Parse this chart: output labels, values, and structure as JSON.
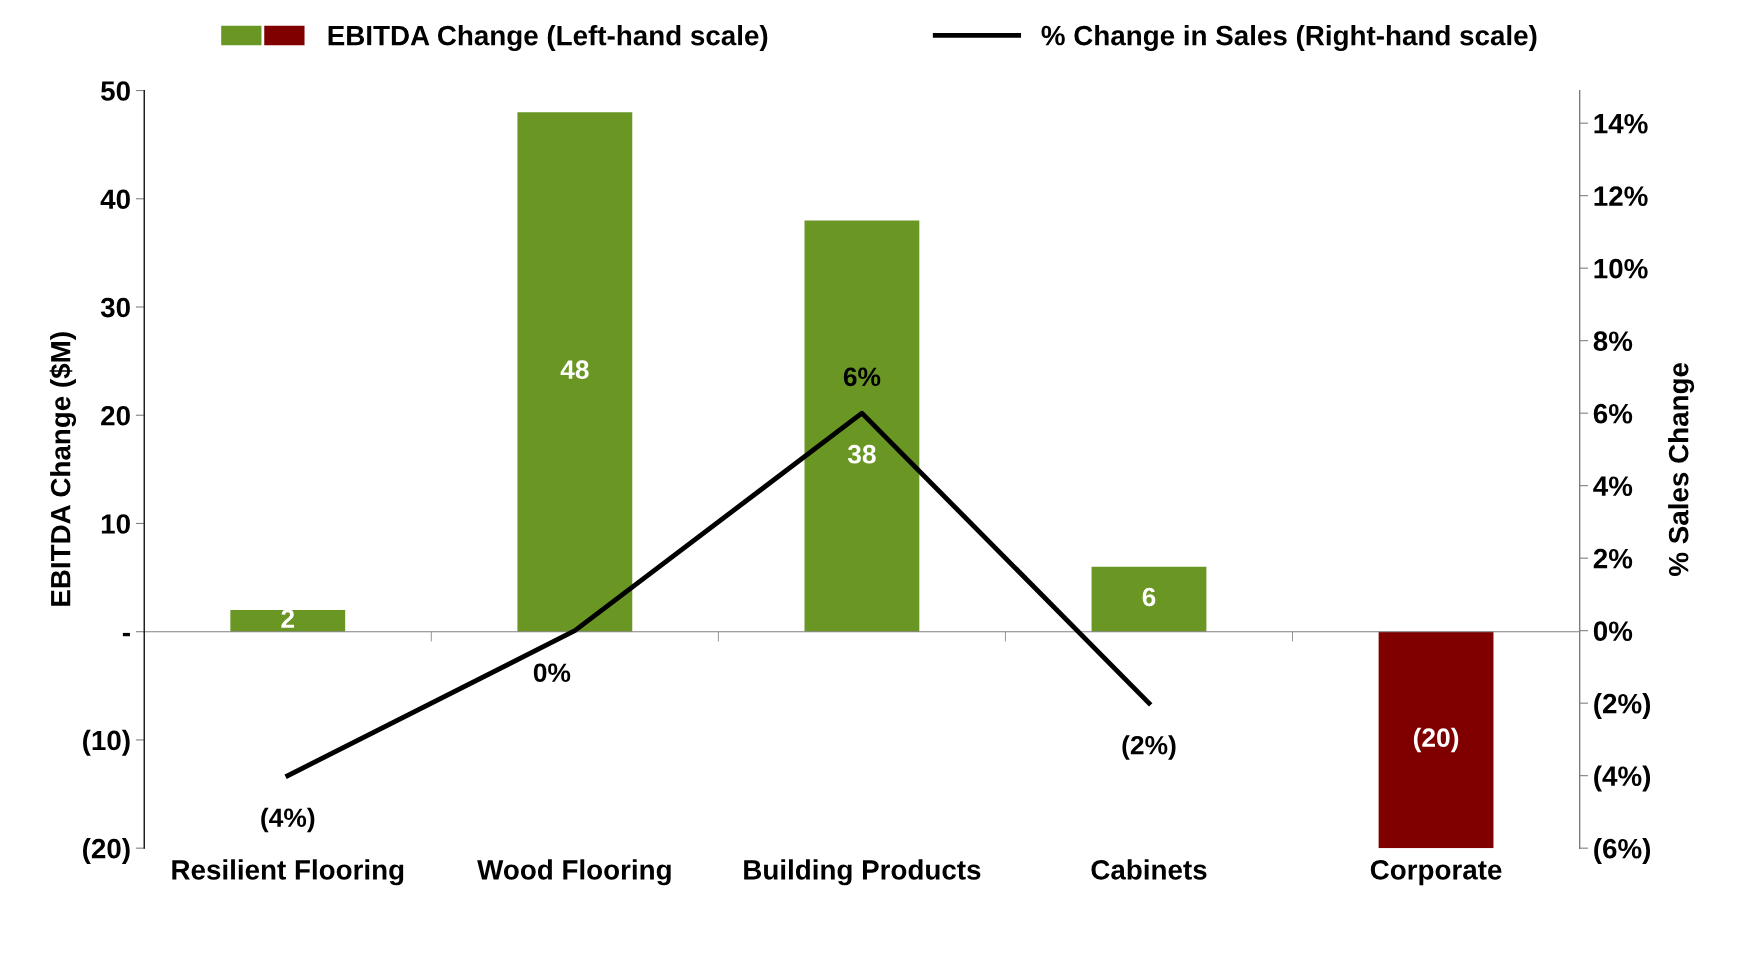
{
  "chart_data": {
    "type": "bar",
    "categories": [
      "Resilient Flooring",
      "Wood Flooring",
      "Building Products",
      "Cabinets",
      "Corporate"
    ],
    "series": [
      {
        "name": "EBITDA Change (Left-hand scale)",
        "colors": [
          "#6a9624",
          "#6a9624",
          "#6a9624",
          "#6a9624",
          "#800000"
        ],
        "values": [
          2,
          48,
          38,
          6,
          -20
        ],
        "value_labels": [
          "2",
          "48",
          "38",
          "6",
          "(20)"
        ]
      },
      {
        "name": "% Change in Sales (Right-hand scale)",
        "type": "line",
        "axis": "y2",
        "color": "#000000",
        "values": [
          -4,
          0,
          6,
          -2,
          null
        ],
        "value_labels": [
          "(4%)",
          "0%",
          "6%",
          "(2%)",
          null
        ]
      }
    ],
    "ylabel": "EBITDA Change ($M)",
    "y2label": "% Sales Change",
    "ylim": [
      -20,
      50
    ],
    "yticks": [
      {
        "value": -20,
        "label": "(20)"
      },
      {
        "value": -10,
        "label": "(10)"
      },
      {
        "value": 0,
        "label": "-"
      },
      10,
      20,
      30,
      40,
      50
    ],
    "y2lim": [
      -6,
      14.9
    ],
    "y2ticks": [
      {
        "value": -6,
        "label": "(6%)"
      },
      {
        "value": -4,
        "label": "(4%)"
      },
      {
        "value": -2,
        "label": "(2%)"
      },
      {
        "value": 0,
        "label": "0%"
      },
      {
        "value": 2,
        "label": "2%"
      },
      {
        "value": 4,
        "label": "4%"
      },
      {
        "value": 6,
        "label": "6%"
      },
      {
        "value": 8,
        "label": "8%"
      },
      {
        "value": 10,
        "label": "10%"
      },
      {
        "value": 12,
        "label": "12%"
      },
      {
        "value": 14,
        "label": "14%"
      }
    ],
    "legend": "top"
  }
}
